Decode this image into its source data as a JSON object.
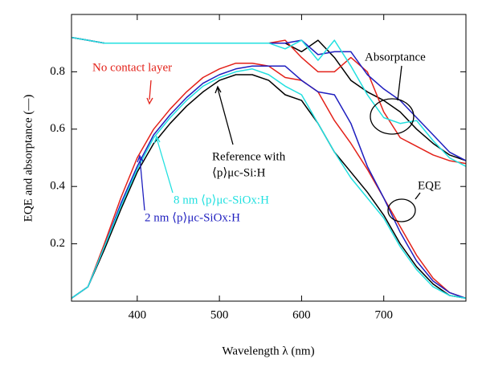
{
  "chart_data": {
    "type": "line",
    "xlabel": "Wavelength λ (nm)",
    "ylabel": "EQE and absorptance (—)",
    "x": [
      320,
      340,
      360,
      380,
      400,
      420,
      440,
      460,
      480,
      500,
      520,
      540,
      560,
      580,
      600,
      620,
      640,
      660,
      680,
      700,
      720,
      740,
      760,
      780,
      800
    ],
    "xlim": [
      320,
      800
    ],
    "xticks": [
      400,
      500,
      600,
      700
    ],
    "ylim": [
      0,
      1
    ],
    "yticks": [
      0.2,
      0.4,
      0.6,
      0.8
    ],
    "series": [
      {
        "color": "#000000",
        "values": [
          0.01,
          0.05,
          0.18,
          0.32,
          0.45,
          0.55,
          0.62,
          0.68,
          0.73,
          0.77,
          0.79,
          0.79,
          0.77,
          0.72,
          0.7,
          0.62,
          0.52,
          0.45,
          0.38,
          0.3,
          0.2,
          0.12,
          0.06,
          0.02,
          0.01
        ]
      },
      {
        "color": "#e32119",
        "values": [
          0.01,
          0.05,
          0.2,
          0.36,
          0.5,
          0.6,
          0.67,
          0.73,
          0.78,
          0.81,
          0.83,
          0.83,
          0.82,
          0.78,
          0.77,
          0.73,
          0.63,
          0.55,
          0.46,
          0.36,
          0.26,
          0.16,
          0.08,
          0.03,
          0.01
        ]
      },
      {
        "color": "#1f1fbf",
        "values": [
          0.01,
          0.05,
          0.19,
          0.34,
          0.47,
          0.58,
          0.65,
          0.71,
          0.76,
          0.79,
          0.81,
          0.82,
          0.82,
          0.82,
          0.77,
          0.73,
          0.72,
          0.62,
          0.47,
          0.36,
          0.24,
          0.14,
          0.07,
          0.03,
          0.01
        ]
      },
      {
        "color": "#22e0e0",
        "values": [
          0.01,
          0.05,
          0.19,
          0.33,
          0.46,
          0.57,
          0.64,
          0.7,
          0.75,
          0.78,
          0.8,
          0.81,
          0.79,
          0.75,
          0.72,
          0.62,
          0.52,
          0.43,
          0.36,
          0.29,
          0.19,
          0.11,
          0.05,
          0.02,
          0.01
        ]
      },
      {
        "color": "#000000",
        "values": [
          0.92,
          0.91,
          0.9,
          0.9,
          0.9,
          0.9,
          0.9,
          0.9,
          0.9,
          0.9,
          0.9,
          0.9,
          0.9,
          0.9,
          0.87,
          0.91,
          0.85,
          0.77,
          0.73,
          0.7,
          0.66,
          0.6,
          0.55,
          0.51,
          0.49
        ]
      },
      {
        "color": "#e32119",
        "values": [
          0.92,
          0.91,
          0.9,
          0.9,
          0.9,
          0.9,
          0.9,
          0.9,
          0.9,
          0.9,
          0.9,
          0.9,
          0.9,
          0.91,
          0.85,
          0.8,
          0.8,
          0.85,
          0.8,
          0.66,
          0.57,
          0.54,
          0.51,
          0.49,
          0.48
        ]
      },
      {
        "color": "#1f1fbf",
        "values": [
          0.92,
          0.91,
          0.9,
          0.9,
          0.9,
          0.9,
          0.9,
          0.9,
          0.9,
          0.9,
          0.9,
          0.9,
          0.9,
          0.9,
          0.91,
          0.86,
          0.87,
          0.87,
          0.79,
          0.74,
          0.7,
          0.64,
          0.58,
          0.52,
          0.49
        ]
      },
      {
        "color": "#22e0e0",
        "values": [
          0.92,
          0.91,
          0.9,
          0.9,
          0.9,
          0.9,
          0.9,
          0.9,
          0.9,
          0.9,
          0.9,
          0.9,
          0.9,
          0.88,
          0.91,
          0.84,
          0.91,
          0.82,
          0.72,
          0.64,
          0.62,
          0.63,
          0.56,
          0.5,
          0.47
        ]
      }
    ],
    "annotations": [
      "No contact layer",
      "Reference with",
      "⟨p⟩μc-Si:H",
      "8 nm ⟨p⟩μc-SiOx:H",
      "2 nm ⟨p⟩μc-SiOx:H",
      "Absorptance",
      "EQE"
    ]
  }
}
